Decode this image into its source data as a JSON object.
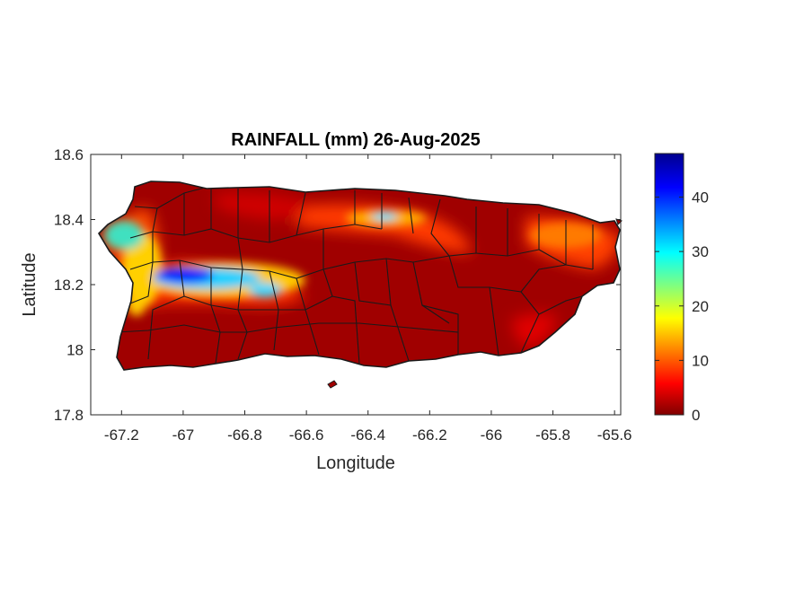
{
  "chart_data": {
    "type": "heatmap",
    "title": "RAINFALL (mm) 26-Aug-2025",
    "xlabel": "Longitude",
    "ylabel": "Latitude",
    "xlim": [
      -67.3,
      -65.58
    ],
    "ylim": [
      17.8,
      18.6
    ],
    "xticks": [
      -67.2,
      -67.0,
      -66.8,
      -66.6,
      -66.4,
      -66.2,
      -66.0,
      -65.8,
      -65.6
    ],
    "xtick_labels": [
      "-67.2",
      "-67",
      "-66.8",
      "-66.6",
      "-66.4",
      "-66.2",
      "-66",
      "-65.8",
      "-65.6"
    ],
    "yticks": [
      17.8,
      18.0,
      18.2,
      18.4,
      18.6
    ],
    "ytick_labels": [
      "17.8",
      "18",
      "18.2",
      "18.4",
      "18.6"
    ],
    "colorbar": {
      "colormap": "jet",
      "range": [
        0,
        48
      ],
      "ticks": [
        0,
        10,
        20,
        30,
        40
      ],
      "tick_labels": [
        "0",
        "10",
        "20",
        "30",
        "40"
      ]
    },
    "rain_features": [
      {
        "lon": -67.02,
        "lat": 18.21,
        "value": 46
      },
      {
        "lon": -66.93,
        "lat": 18.2,
        "value": 35
      },
      {
        "lon": -66.75,
        "lat": 18.18,
        "value": 28
      },
      {
        "lon": -67.17,
        "lat": 18.37,
        "value": 30
      },
      {
        "lon": -67.14,
        "lat": 18.3,
        "value": 20
      },
      {
        "lon": -67.15,
        "lat": 18.14,
        "value": 18
      },
      {
        "lon": -66.35,
        "lat": 18.41,
        "value": 25
      },
      {
        "lon": -66.45,
        "lat": 18.43,
        "value": 14
      },
      {
        "lon": -66.25,
        "lat": 18.38,
        "value": 12
      },
      {
        "lon": -65.75,
        "lat": 18.34,
        "value": 9
      },
      {
        "lon": -65.65,
        "lat": 18.32,
        "value": 7
      },
      {
        "lon": -65.82,
        "lat": 18.08,
        "value": 5
      },
      {
        "lon": -66.7,
        "lat": 18.43,
        "value": 6
      }
    ],
    "grid": false,
    "legend": "none"
  }
}
